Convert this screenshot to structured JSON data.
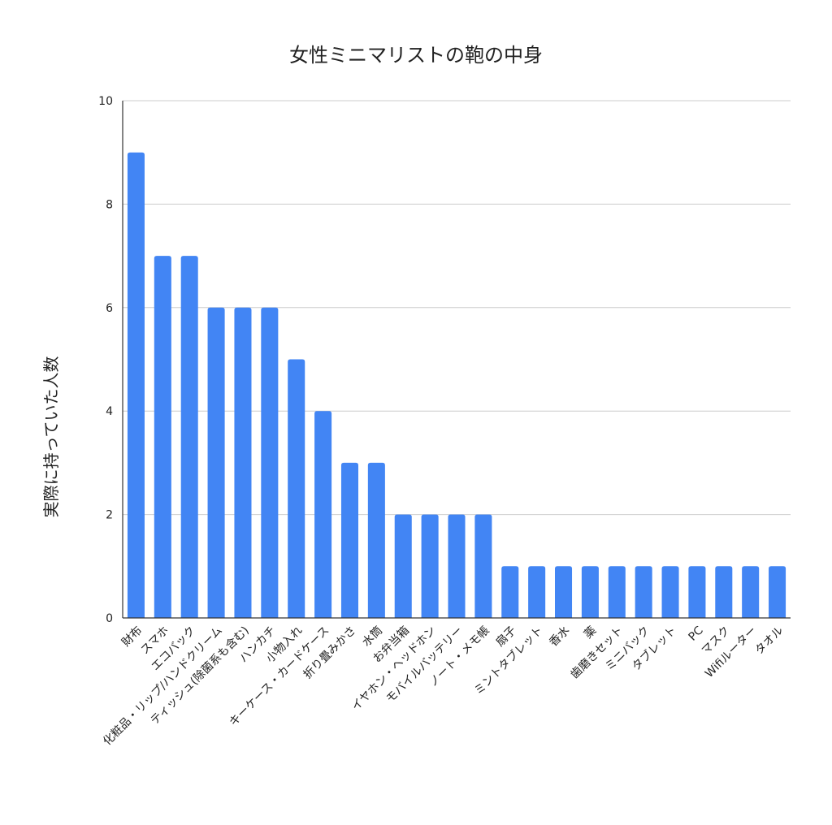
{
  "chart_data": {
    "type": "bar",
    "title": "女性ミニマリストの鞄の中身",
    "xlabel": "",
    "ylabel": "実際に持っていた人数",
    "ylim": [
      0,
      10
    ],
    "yticks": [
      0,
      2,
      4,
      6,
      8,
      10
    ],
    "grid": true,
    "legend": "none",
    "bar_color": "#4285f4",
    "categories": [
      "財布",
      "スマホ",
      "エコバック",
      "化粧品・リップ/ハンドクリーム",
      "ティッシュ(除菌系も含む)",
      "ハンカチ",
      "小物入れ",
      "キーケース・カードケース",
      "折り畳みかさ",
      "水筒",
      "お弁当箱",
      "イヤホン・ヘッドホン",
      "モバイルバッテリー",
      "ノート・メモ帳",
      "扇子",
      "ミントタブレット",
      "香水",
      "薬",
      "歯磨きセット",
      "ミニバック",
      "タブレット",
      "PC",
      "マスク",
      "Wifiルーター",
      "タオル"
    ],
    "values": [
      9,
      7,
      7,
      6,
      6,
      6,
      5,
      4,
      3,
      3,
      2,
      2,
      2,
      2,
      1,
      1,
      1,
      1,
      1,
      1,
      1,
      1,
      1,
      1,
      1
    ]
  }
}
